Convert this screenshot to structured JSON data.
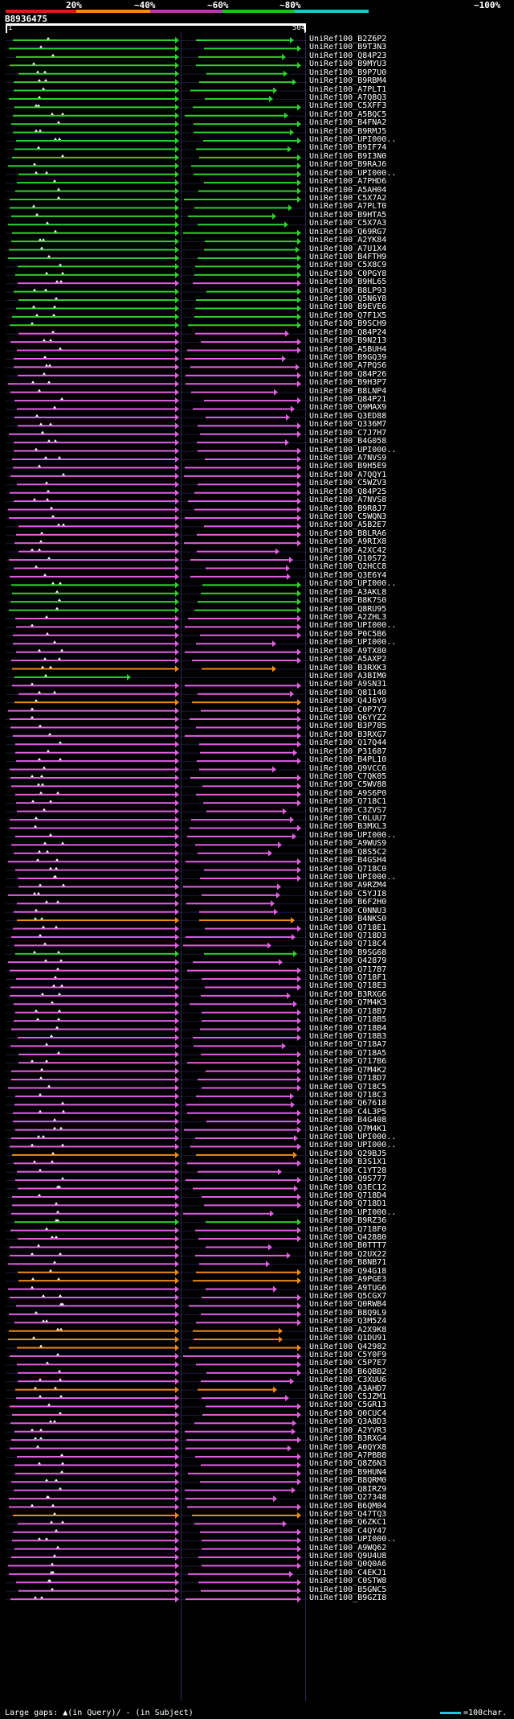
{
  "title": "B8936475",
  "identity_scale": {
    "labels": [
      "20%",
      "~40%",
      "~60%",
      "~80%",
      "~100%"
    ],
    "colors": [
      "#e01818",
      "#f08c1a",
      "#b03ab0",
      "#20c020",
      "#20c8c8"
    ]
  },
  "ruler": {
    "start_label": "1",
    "end_label": "504"
  },
  "colors": {
    "magenta": "#e060e0",
    "green": "#30d030",
    "orange": "#f08a18",
    "cyan": "#20c8d8",
    "background": "#000000"
  },
  "footer": {
    "legend": "Large gaps: ▲(in Query)/ - (in Subject)",
    "scale_text": "=100char."
  },
  "alignments": [
    {
      "id": "UniRef100_B2Z6P2",
      "color": "green"
    },
    {
      "id": "UniRef100_B9T3N3",
      "color": "green"
    },
    {
      "id": "UniRef100_Q84P23",
      "color": "green"
    },
    {
      "id": "UniRef100_B9MYU3",
      "color": "green"
    },
    {
      "id": "UniRef100_B9P7U0",
      "color": "green"
    },
    {
      "id": "UniRef100_B9RBM4",
      "color": "green"
    },
    {
      "id": "UniRef100_A7PLT1",
      "color": "green"
    },
    {
      "id": "UniRef100_A7Q8Q3",
      "color": "green"
    },
    {
      "id": "UniRef100_C5XFF3",
      "color": "green"
    },
    {
      "id": "UniRef100_A5BQC5",
      "color": "green"
    },
    {
      "id": "UniRef100_B4FNA2",
      "color": "green"
    },
    {
      "id": "UniRef100_B9RMJ5",
      "color": "green"
    },
    {
      "id": "UniRef100_UPI000..",
      "color": "green"
    },
    {
      "id": "UniRef100_B9IF74",
      "color": "green"
    },
    {
      "id": "UniRef100_B9I3N0",
      "color": "green"
    },
    {
      "id": "UniRef100_B9RAJ6",
      "color": "green"
    },
    {
      "id": "UniRef100_UPI000..",
      "color": "green"
    },
    {
      "id": "UniRef100_A7PHD6",
      "color": "green"
    },
    {
      "id": "UniRef100_A5AH04",
      "color": "green"
    },
    {
      "id": "UniRef100_C5X7A2",
      "color": "green"
    },
    {
      "id": "UniRef100_A7PLT0",
      "color": "green"
    },
    {
      "id": "UniRef100_B9HTA5",
      "color": "green"
    },
    {
      "id": "UniRef100_C5X7A3",
      "color": "green"
    },
    {
      "id": "UniRef100_Q69RG7",
      "color": "green"
    },
    {
      "id": "UniRef100_A2YK84",
      "color": "green"
    },
    {
      "id": "UniRef100_A7U1X4",
      "color": "green"
    },
    {
      "id": "UniRef100_B4FTH9",
      "color": "green"
    },
    {
      "id": "UniRef100_C5X8C9",
      "color": "green"
    },
    {
      "id": "UniRef100_C0PGY8",
      "color": "green"
    },
    {
      "id": "UniRef100_B9HL65",
      "color": "magenta"
    },
    {
      "id": "UniRef100_B8LP93",
      "color": "green"
    },
    {
      "id": "UniRef100_Q5N6Y8",
      "color": "green"
    },
    {
      "id": "UniRef100_B9EVE6",
      "color": "green"
    },
    {
      "id": "UniRef100_Q7F1X5",
      "color": "green"
    },
    {
      "id": "UniRef100_B9SCH9",
      "color": "green"
    },
    {
      "id": "UniRef100_Q84P24",
      "color": "magenta"
    },
    {
      "id": "UniRef100_B9N213",
      "color": "magenta"
    },
    {
      "id": "UniRef100_A5BUH4",
      "color": "magenta"
    },
    {
      "id": "UniRef100_B9GQ39",
      "color": "magenta"
    },
    {
      "id": "UniRef100_A7PQS6",
      "color": "magenta"
    },
    {
      "id": "UniRef100_Q84P26",
      "color": "magenta"
    },
    {
      "id": "UniRef100_B9H3P7",
      "color": "magenta"
    },
    {
      "id": "UniRef100_B8LNP4",
      "color": "magenta"
    },
    {
      "id": "UniRef100_Q84P21",
      "color": "magenta"
    },
    {
      "id": "UniRef100_Q9MAX9",
      "color": "magenta"
    },
    {
      "id": "UniRef100_Q3ED88",
      "color": "magenta"
    },
    {
      "id": "UniRef100_Q336M7",
      "color": "magenta"
    },
    {
      "id": "UniRef100_C7J7H7",
      "color": "magenta"
    },
    {
      "id": "UniRef100_B4G058",
      "color": "magenta"
    },
    {
      "id": "UniRef100_UPI000..",
      "color": "magenta"
    },
    {
      "id": "UniRef100_A7NVS9",
      "color": "magenta"
    },
    {
      "id": "UniRef100_B9H5E9",
      "color": "magenta"
    },
    {
      "id": "UniRef100_A7QQY1",
      "color": "magenta"
    },
    {
      "id": "UniRef100_C5WZV3",
      "color": "magenta"
    },
    {
      "id": "UniRef100_Q84P25",
      "color": "magenta"
    },
    {
      "id": "UniRef100_A7NVS8",
      "color": "magenta"
    },
    {
      "id": "UniRef100_B9R8J7",
      "color": "magenta"
    },
    {
      "id": "UniRef100_C5WQN3",
      "color": "magenta"
    },
    {
      "id": "UniRef100_A5B2E7",
      "color": "magenta"
    },
    {
      "id": "UniRef100_B8LRA6",
      "color": "magenta"
    },
    {
      "id": "UniRef100_A9RIX8",
      "color": "magenta"
    },
    {
      "id": "UniRef100_A2XC42",
      "color": "magenta"
    },
    {
      "id": "UniRef100_Q10S72",
      "color": "magenta"
    },
    {
      "id": "UniRef100_Q2HCC8",
      "color": "magenta"
    },
    {
      "id": "UniRef100_Q3E6Y4",
      "color": "magenta"
    },
    {
      "id": "UniRef100_UPI000..",
      "color": "green"
    },
    {
      "id": "UniRef100_A3AKL8",
      "color": "green"
    },
    {
      "id": "UniRef100_B8K7S0",
      "color": "green"
    },
    {
      "id": "UniRef100_Q8RU95",
      "color": "green"
    },
    {
      "id": "UniRef100_A2ZHL3",
      "color": "magenta"
    },
    {
      "id": "UniRef100_UPI000..",
      "color": "magenta"
    },
    {
      "id": "UniRef100_P0C5B6",
      "color": "magenta"
    },
    {
      "id": "UniRef100_UPI000..",
      "color": "magenta"
    },
    {
      "id": "UniRef100_A9TX80",
      "color": "magenta"
    },
    {
      "id": "UniRef100_A5AXP2",
      "color": "magenta"
    },
    {
      "id": "UniRef100_B3RXK3",
      "color": "orange"
    },
    {
      "id": "UniRef100_A3BIM0",
      "color": "green"
    },
    {
      "id": "UniRef100_A9SN31",
      "color": "magenta"
    },
    {
      "id": "UniRef100_Q81140",
      "color": "magenta"
    },
    {
      "id": "UniRef100_Q4J6Y9",
      "color": "orange"
    },
    {
      "id": "UniRef100_C0P7Y7",
      "color": "magenta"
    },
    {
      "id": "UniRef100_Q6YYZ2",
      "color": "magenta"
    },
    {
      "id": "UniRef100_B3P785",
      "color": "magenta"
    },
    {
      "id": "UniRef100_B3RXG7",
      "color": "magenta"
    },
    {
      "id": "UniRef100_Q17Q44",
      "color": "magenta"
    },
    {
      "id": "UniRef100_P31687",
      "color": "magenta"
    },
    {
      "id": "UniRef100_B4PL10",
      "color": "magenta"
    },
    {
      "id": "UniRef100_Q9VCC6",
      "color": "magenta"
    },
    {
      "id": "UniRef100_C7QK05",
      "color": "magenta"
    },
    {
      "id": "UniRef100_C5WV88",
      "color": "magenta"
    },
    {
      "id": "UniRef100_A9S6P0",
      "color": "magenta"
    },
    {
      "id": "UniRef100_Q718C1",
      "color": "magenta"
    },
    {
      "id": "UniRef100_C3ZVS7",
      "color": "magenta"
    },
    {
      "id": "UniRef100_C0LUU7",
      "color": "magenta"
    },
    {
      "id": "UniRef100_B3MXL3",
      "color": "magenta"
    },
    {
      "id": "UniRef100_UPI000..",
      "color": "magenta"
    },
    {
      "id": "UniRef100_A9WUS9",
      "color": "magenta"
    },
    {
      "id": "UniRef100_Q8S5C2",
      "color": "magenta"
    },
    {
      "id": "UniRef100_B4GSH4",
      "color": "magenta"
    },
    {
      "id": "UniRef100_Q718C0",
      "color": "magenta"
    },
    {
      "id": "UniRef100_UPI000..",
      "color": "magenta"
    },
    {
      "id": "UniRef100_A9RZM4",
      "color": "magenta"
    },
    {
      "id": "UniRef100_C5YJI8",
      "color": "magenta"
    },
    {
      "id": "UniRef100_B6F2H0",
      "color": "magenta"
    },
    {
      "id": "UniRef100_C0NNU3",
      "color": "magenta"
    },
    {
      "id": "UniRef100_B4NKS0",
      "color": "orange"
    },
    {
      "id": "UniRef100_Q718E1",
      "color": "magenta"
    },
    {
      "id": "UniRef100_Q718D3",
      "color": "magenta"
    },
    {
      "id": "UniRef100_Q718C4",
      "color": "magenta"
    },
    {
      "id": "UniRef100_B9SG68",
      "color": "green"
    },
    {
      "id": "UniRef100_Q42879",
      "color": "magenta"
    },
    {
      "id": "UniRef100_Q717B7",
      "color": "magenta"
    },
    {
      "id": "UniRef100_Q718F1",
      "color": "magenta"
    },
    {
      "id": "UniRef100_Q718E3",
      "color": "magenta"
    },
    {
      "id": "UniRef100_B3RXG6",
      "color": "magenta"
    },
    {
      "id": "UniRef100_Q7M4K3",
      "color": "magenta"
    },
    {
      "id": "UniRef100_Q718B7",
      "color": "magenta"
    },
    {
      "id": "UniRef100_Q718B5",
      "color": "magenta"
    },
    {
      "id": "UniRef100_Q718B4",
      "color": "magenta"
    },
    {
      "id": "UniRef100_Q718B3",
      "color": "magenta"
    },
    {
      "id": "UniRef100_Q718A7",
      "color": "magenta"
    },
    {
      "id": "UniRef100_Q718A5",
      "color": "magenta"
    },
    {
      "id": "UniRef100_Q717B6",
      "color": "magenta"
    },
    {
      "id": "UniRef100_Q7M4K2",
      "color": "magenta"
    },
    {
      "id": "UniRef100_Q718D7",
      "color": "magenta"
    },
    {
      "id": "UniRef100_Q718C5",
      "color": "magenta"
    },
    {
      "id": "UniRef100_Q718C3",
      "color": "magenta"
    },
    {
      "id": "UniRef100_Q67618",
      "color": "magenta"
    },
    {
      "id": "UniRef100_C4L3P5",
      "color": "magenta"
    },
    {
      "id": "UniRef100_B4G408",
      "color": "magenta"
    },
    {
      "id": "UniRef100_Q7M4K1",
      "color": "magenta"
    },
    {
      "id": "UniRef100_UPI000..",
      "color": "magenta"
    },
    {
      "id": "UniRef100_UPI000..",
      "color": "magenta"
    },
    {
      "id": "UniRef100_Q29BJ5",
      "color": "orange"
    },
    {
      "id": "UniRef100_B3S1X1",
      "color": "magenta"
    },
    {
      "id": "UniRef100_C1YT28",
      "color": "magenta"
    },
    {
      "id": "UniRef100_Q9S777",
      "color": "magenta"
    },
    {
      "id": "UniRef100_Q3EC12",
      "color": "magenta"
    },
    {
      "id": "UniRef100_Q718D4",
      "color": "magenta"
    },
    {
      "id": "UniRef100_Q718D1",
      "color": "magenta"
    },
    {
      "id": "UniRef100_UPI000..",
      "color": "magenta"
    },
    {
      "id": "UniRef100_B9RZ36",
      "color": "green"
    },
    {
      "id": "UniRef100_Q718F0",
      "color": "magenta"
    },
    {
      "id": "UniRef100_Q42880",
      "color": "magenta"
    },
    {
      "id": "UniRef100_B0TTT7",
      "color": "magenta"
    },
    {
      "id": "UniRef100_Q2UX22",
      "color": "magenta"
    },
    {
      "id": "UniRef100_B8NB71",
      "color": "magenta"
    },
    {
      "id": "UniRef100_Q94G18",
      "color": "orange"
    },
    {
      "id": "UniRef100_A9PGE3",
      "color": "orange"
    },
    {
      "id": "UniRef100_A9TUG6",
      "color": "magenta"
    },
    {
      "id": "UniRef100_Q5CGX7",
      "color": "magenta"
    },
    {
      "id": "UniRef100_Q0RWB4",
      "color": "magenta"
    },
    {
      "id": "UniRef100_B8Q9L9",
      "color": "magenta"
    },
    {
      "id": "UniRef100_Q3M5Z4",
      "color": "magenta"
    },
    {
      "id": "UniRef100_A2X9K8",
      "color": "orange"
    },
    {
      "id": "UniRef100_Q1DU91",
      "color": "orange"
    },
    {
      "id": "UniRef100_Q42982",
      "color": "orange"
    },
    {
      "id": "UniRef100_C5Y0F9",
      "color": "magenta"
    },
    {
      "id": "UniRef100_C5P7E7",
      "color": "magenta"
    },
    {
      "id": "UniRef100_B6QBB2",
      "color": "magenta"
    },
    {
      "id": "UniRef100_C3XUU6",
      "color": "magenta"
    },
    {
      "id": "UniRef100_A3AHD7",
      "color": "orange"
    },
    {
      "id": "UniRef100_C5JZM1",
      "color": "magenta"
    },
    {
      "id": "UniRef100_C5GR13",
      "color": "magenta"
    },
    {
      "id": "UniRef100_Q0CUC4",
      "color": "magenta"
    },
    {
      "id": "UniRef100_Q3A8D3",
      "color": "magenta"
    },
    {
      "id": "UniRef100_A2YVR3",
      "color": "magenta"
    },
    {
      "id": "UniRef100_B3RXG4",
      "color": "magenta"
    },
    {
      "id": "UniRef100_A0QYX8",
      "color": "magenta"
    },
    {
      "id": "UniRef100_A7PBB8",
      "color": "magenta"
    },
    {
      "id": "UniRef100_Q8Z6N3",
      "color": "magenta"
    },
    {
      "id": "UniRef100_B9HUN4",
      "color": "magenta"
    },
    {
      "id": "UniRef100_B8QRM0",
      "color": "magenta"
    },
    {
      "id": "UniRef100_Q8IRZ9",
      "color": "magenta"
    },
    {
      "id": "UniRef100_Q27348",
      "color": "magenta"
    },
    {
      "id": "UniRef100_B6QM04",
      "color": "magenta"
    },
    {
      "id": "UniRef100_Q47TQ3",
      "color": "orange"
    },
    {
      "id": "UniRef100_Q6ZKC1",
      "color": "magenta"
    },
    {
      "id": "UniRef100_C4QY47",
      "color": "magenta"
    },
    {
      "id": "UniRef100_UPI000..",
      "color": "magenta"
    },
    {
      "id": "UniRef100_A9WQ62",
      "color": "magenta"
    },
    {
      "id": "UniRef100_Q9U4U8",
      "color": "magenta"
    },
    {
      "id": "UniRef100_Q0Q0A6",
      "color": "magenta"
    },
    {
      "id": "UniRef100_C4EKJ1",
      "color": "magenta"
    },
    {
      "id": "UniRef100_C0STW8",
      "color": "magenta"
    },
    {
      "id": "UniRef100_B5GNC5",
      "color": "magenta"
    },
    {
      "id": "UniRef100_B9GZI8",
      "color": "magenta"
    }
  ]
}
